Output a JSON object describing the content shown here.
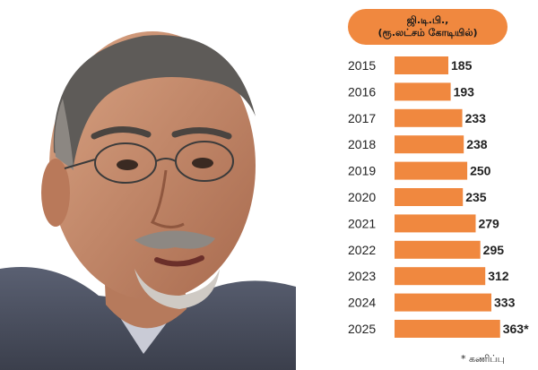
{
  "chart_data": {
    "type": "bar",
    "orientation": "horizontal",
    "title": "ஜி.டி.பி.,",
    "subtitle": "(ரூ.லட்சம் கோடியில்)",
    "categories": [
      "2015",
      "2016",
      "2017",
      "2018",
      "2019",
      "2020",
      "2021",
      "2022",
      "2023",
      "2024",
      "2025"
    ],
    "values": [
      185,
      193,
      233,
      238,
      250,
      235,
      279,
      295,
      312,
      333,
      363
    ],
    "data_labels": [
      "185",
      "193",
      "233",
      "238",
      "250",
      "235",
      "279",
      "295",
      "312",
      "333",
      "363*"
    ],
    "bar_color": "#f0883f",
    "grid": false,
    "legend": "none"
  },
  "footnote": "* கணிப்பு"
}
